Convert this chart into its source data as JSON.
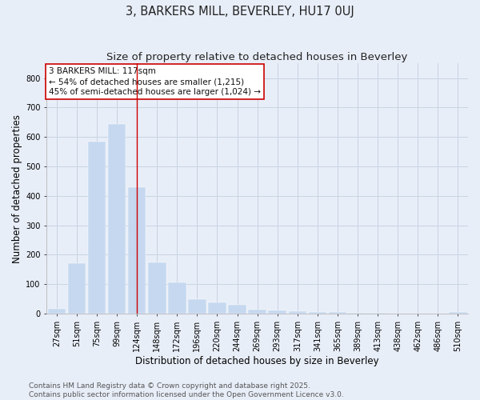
{
  "title": "3, BARKERS MILL, BEVERLEY, HU17 0UJ",
  "subtitle": "Size of property relative to detached houses in Beverley",
  "xlabel": "Distribution of detached houses by size in Beverley",
  "ylabel": "Number of detached properties",
  "categories": [
    "27sqm",
    "51sqm",
    "75sqm",
    "99sqm",
    "124sqm",
    "148sqm",
    "172sqm",
    "196sqm",
    "220sqm",
    "244sqm",
    "269sqm",
    "293sqm",
    "317sqm",
    "341sqm",
    "365sqm",
    "389sqm",
    "413sqm",
    "438sqm",
    "462sqm",
    "486sqm",
    "510sqm"
  ],
  "values": [
    17,
    170,
    585,
    645,
    430,
    175,
    105,
    50,
    38,
    30,
    14,
    10,
    8,
    5,
    4,
    3,
    2,
    1,
    1,
    0,
    4
  ],
  "bar_color": "#c5d8ef",
  "bar_edge_color": "#c5d8ef",
  "grid_color": "#c8d4e3",
  "background_color": "#e8eef8",
  "vline_x_index": 4,
  "vline_color": "#cc0000",
  "annotation_text": "3 BARKERS MILL: 117sqm\n← 54% of detached houses are smaller (1,215)\n45% of semi-detached houses are larger (1,024) →",
  "annotation_box_color": "white",
  "annotation_box_edge_color": "#cc0000",
  "footer_line1": "Contains HM Land Registry data © Crown copyright and database right 2025.",
  "footer_line2": "Contains public sector information licensed under the Open Government Licence v3.0.",
  "ylim": [
    0,
    850
  ],
  "yticks": [
    0,
    100,
    200,
    300,
    400,
    500,
    600,
    700,
    800
  ],
  "title_fontsize": 10.5,
  "subtitle_fontsize": 9.5,
  "axis_label_fontsize": 8.5,
  "tick_fontsize": 7,
  "annotation_fontsize": 7.5,
  "footer_fontsize": 6.5
}
